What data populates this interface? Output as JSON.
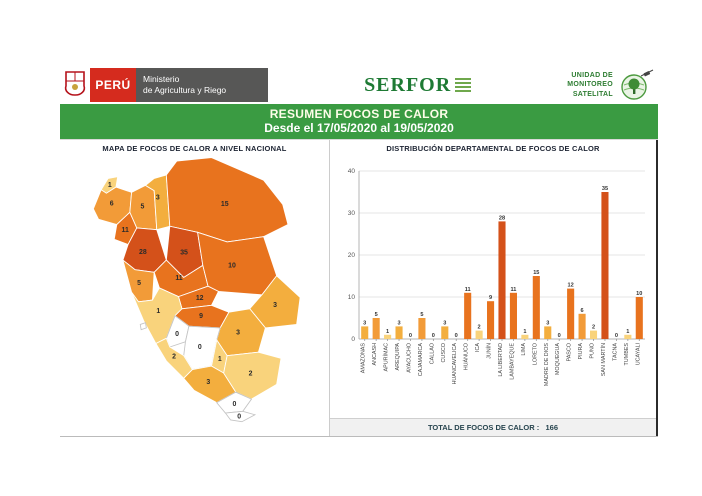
{
  "header": {
    "peru_label": "PERÚ",
    "ministry_line1": "Ministerio",
    "ministry_line2": "de Agricultura y Riego",
    "serfor_label": "SERFOR",
    "unit_lines": [
      "UNIDAD DE",
      "MONITOREO",
      "SATELITAL"
    ],
    "brand_green": "#1E7A34",
    "brand_red": "#D52B1E",
    "brand_gray": "#575756"
  },
  "banner": {
    "title": "RESUMEN FOCOS DE CALOR",
    "subtitle": "Desde el 17/05/2020 al 19/05/2020",
    "bg": "#3A9B42"
  },
  "map_panel": {
    "title": "MAPA DE FOCOS DE CALOR A NIVEL NACIONAL"
  },
  "chart_panel": {
    "title": "DISTRIBUCIÓN DEPARTAMENTAL DE FOCOS DE CALOR",
    "total_label": "TOTAL DE FOCOS DE CALOR :",
    "total_value": 166
  },
  "chart_data": {
    "type": "bar",
    "title": "DISTRIBUCIÓN DEPARTAMENTAL DE FOCOS DE CALOR",
    "categories": [
      "AMAZONAS",
      "ANCASH",
      "APURÍMAC",
      "AREQUIPA",
      "AYACUCHO",
      "CAJAMARCA",
      "CALLAO",
      "CUSCO",
      "HUANCAVELICA",
      "HUÁNUCO",
      "ICA",
      "JUNÍN",
      "LA LIBERTAD",
      "LAMBAYEQUE",
      "LIMA",
      "LORETO",
      "MADRE DE DIOS",
      "MOQUEGUA",
      "PASCO",
      "PIURA",
      "PUNO",
      "SAN MARTÍN",
      "TACNA",
      "TUMBES",
      "UCAYALI"
    ],
    "values": [
      3,
      5,
      1,
      3,
      0,
      5,
      0,
      3,
      0,
      11,
      2,
      9,
      28,
      11,
      1,
      15,
      3,
      0,
      12,
      6,
      2,
      35,
      0,
      1,
      10
    ],
    "xlabel": "",
    "ylabel": "",
    "ylim": [
      0,
      40
    ],
    "yticks": [
      0,
      10,
      20,
      30,
      40
    ],
    "grid": true,
    "legend": false,
    "bar_value_labels": true,
    "total": 166,
    "color_scale": [
      {
        "max": 0,
        "color": "#FFFFFF"
      },
      {
        "max": 2,
        "color": "#F9D37C"
      },
      {
        "max": 4,
        "color": "#F3AE3E"
      },
      {
        "max": 8,
        "color": "#F29B38"
      },
      {
        "max": 15,
        "color": "#E8731E"
      },
      {
        "max": 40,
        "color": "#D4511A"
      }
    ]
  }
}
